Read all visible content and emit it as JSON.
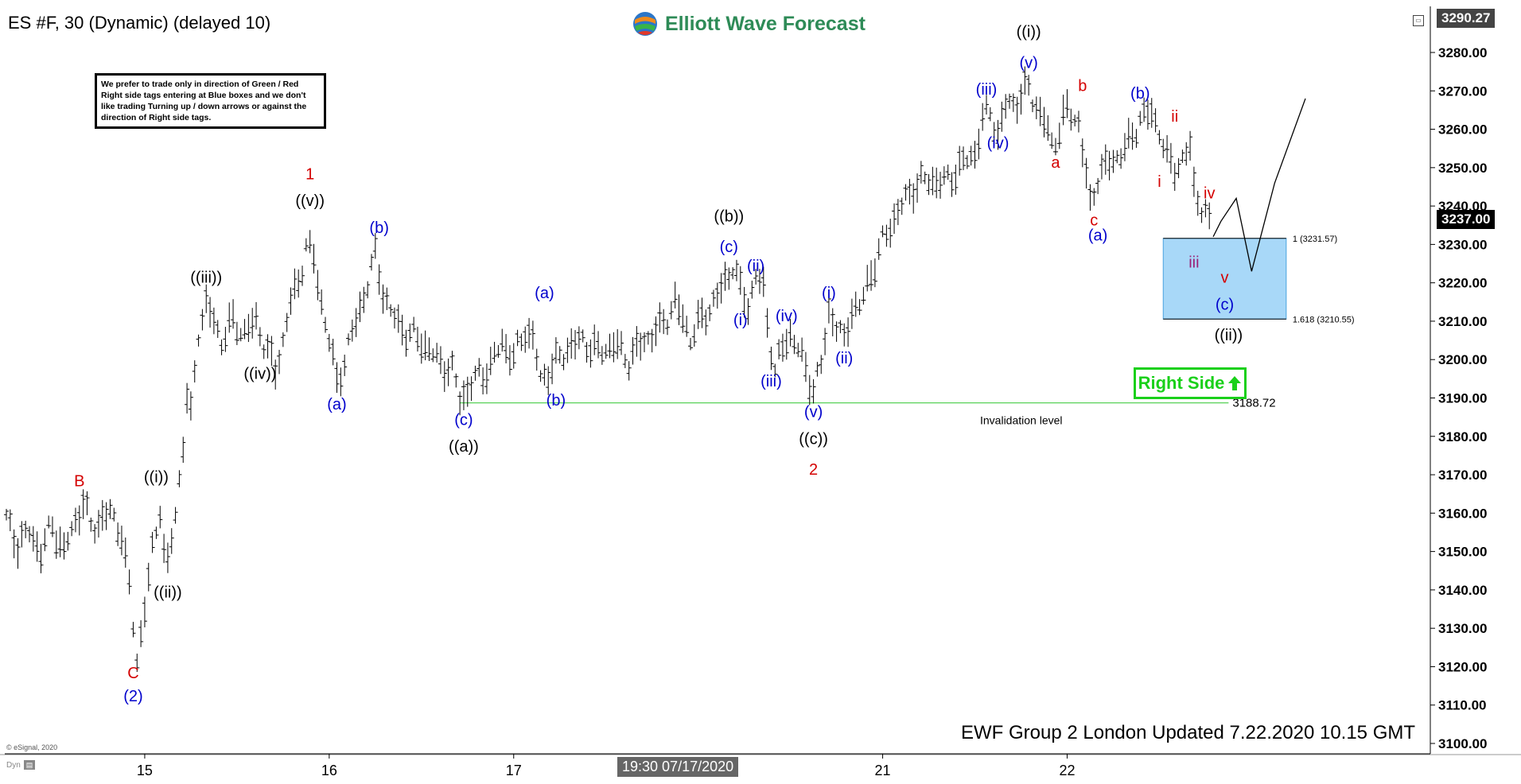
{
  "header": {
    "title": "ES #F, 30 (Dynamic) (delayed 10)",
    "logo_text": "Elliott Wave Forecast",
    "top_price": "3290.27",
    "last_price": "3237.00"
  },
  "disclaimer": "We prefer to trade only in direction of Green / Red Right side tags entering at Blue boxes and we don't like trading Turning up / down arrows or against the direction of Right side tags.",
  "right_side_badge": "Right Side",
  "footer": {
    "updated": "EWF Group 2 London Updated 7.22.2020 10.15 GMT",
    "copyright": "© eSignal, 2020",
    "crosshair_time": "19:30 07/17/2020",
    "dyn": "Dyn"
  },
  "colors": {
    "wave_red": "#d40000",
    "wave_blue": "#0000cc",
    "wave_black": "#000000",
    "wave_purple": "#9b1f77",
    "box_fill": "#a8d8f8",
    "box_border": "#4aa3df",
    "invalidation_line": "#44cc44",
    "right_side": "#1ad01a"
  },
  "chart_data": {
    "type": "line",
    "title": "ES #F, 30 (Dynamic) (delayed 10)",
    "xlabel": "",
    "ylabel": "",
    "ylim": [
      3096,
      3292
    ],
    "y_ticks": [
      3100,
      3110,
      3120,
      3130,
      3140,
      3150,
      3160,
      3170,
      3180,
      3190,
      3200,
      3210,
      3220,
      3230,
      3240,
      3250,
      3260,
      3270,
      3280
    ],
    "x_ticks": [
      {
        "t": 1.8,
        "label": "15"
      },
      {
        "t": 4.2,
        "label": "16"
      },
      {
        "t": 6.6,
        "label": "17"
      },
      {
        "t": 11.4,
        "label": "21"
      },
      {
        "t": 13.8,
        "label": "22"
      }
    ],
    "x_range": [
      0,
      18
    ],
    "price_series": [
      [
        0.0,
        3158
      ],
      [
        0.15,
        3152
      ],
      [
        0.3,
        3155
      ],
      [
        0.45,
        3150
      ],
      [
        0.6,
        3157
      ],
      [
        0.75,
        3150
      ],
      [
        0.9,
        3158
      ],
      [
        1.0,
        3163
      ],
      [
        1.1,
        3156
      ],
      [
        1.2,
        3158
      ],
      [
        1.35,
        3160
      ],
      [
        1.5,
        3155
      ],
      [
        1.6,
        3140
      ],
      [
        1.7,
        3122
      ],
      [
        1.8,
        3135
      ],
      [
        1.9,
        3150
      ],
      [
        2.0,
        3162
      ],
      [
        2.05,
        3150
      ],
      [
        2.1,
        3146
      ],
      [
        2.2,
        3160
      ],
      [
        2.3,
        3178
      ],
      [
        2.35,
        3190
      ],
      [
        2.4,
        3185
      ],
      [
        2.5,
        3208
      ],
      [
        2.6,
        3214
      ],
      [
        2.7,
        3210
      ],
      [
        2.8,
        3205
      ],
      [
        2.95,
        3210
      ],
      [
        3.1,
        3207
      ],
      [
        3.25,
        3210
      ],
      [
        3.4,
        3202
      ],
      [
        3.5,
        3197
      ],
      [
        3.6,
        3205
      ],
      [
        3.7,
        3215
      ],
      [
        3.8,
        3220
      ],
      [
        3.9,
        3230
      ],
      [
        4.0,
        3226
      ],
      [
        4.1,
        3215
      ],
      [
        4.2,
        3205
      ],
      [
        4.3,
        3194
      ],
      [
        4.4,
        3200
      ],
      [
        4.55,
        3210
      ],
      [
        4.7,
        3220
      ],
      [
        4.8,
        3227
      ],
      [
        4.9,
        3218
      ],
      [
        5.0,
        3212
      ],
      [
        5.2,
        3207
      ],
      [
        5.4,
        3205
      ],
      [
        5.6,
        3200
      ],
      [
        5.8,
        3197
      ],
      [
        5.9,
        3190
      ],
      [
        6.0,
        3192
      ],
      [
        6.15,
        3196
      ],
      [
        6.3,
        3198
      ],
      [
        6.45,
        3205
      ],
      [
        6.6,
        3200
      ],
      [
        6.75,
        3208
      ],
      [
        6.85,
        3205
      ],
      [
        6.95,
        3195
      ],
      [
        7.1,
        3198
      ],
      [
        7.3,
        3203
      ],
      [
        7.5,
        3205
      ],
      [
        7.7,
        3202
      ],
      [
        7.9,
        3204
      ],
      [
        8.1,
        3200
      ],
      [
        8.3,
        3205
      ],
      [
        8.5,
        3208
      ],
      [
        8.7,
        3215
      ],
      [
        8.9,
        3206
      ],
      [
        9.1,
        3212
      ],
      [
        9.3,
        3218
      ],
      [
        9.45,
        3225
      ],
      [
        9.55,
        3218
      ],
      [
        9.65,
        3214
      ],
      [
        9.75,
        3222
      ],
      [
        9.85,
        3218
      ],
      [
        9.9,
        3210
      ],
      [
        10.0,
        3197
      ],
      [
        10.1,
        3203
      ],
      [
        10.2,
        3207
      ],
      [
        10.3,
        3203
      ],
      [
        10.4,
        3197
      ],
      [
        10.5,
        3193
      ],
      [
        10.6,
        3198
      ],
      [
        10.65,
        3205
      ],
      [
        10.7,
        3213
      ],
      [
        10.8,
        3209
      ],
      [
        10.9,
        3204
      ],
      [
        11.0,
        3214
      ],
      [
        11.1,
        3213
      ],
      [
        11.2,
        3220
      ],
      [
        11.35,
        3228
      ],
      [
        11.5,
        3235
      ],
      [
        11.65,
        3240
      ],
      [
        11.8,
        3245
      ],
      [
        12.0,
        3247
      ],
      [
        12.2,
        3246
      ],
      [
        12.4,
        3250
      ],
      [
        12.6,
        3254
      ],
      [
        12.7,
        3262
      ],
      [
        12.8,
        3265
      ],
      [
        12.9,
        3258
      ],
      [
        13.0,
        3266
      ],
      [
        13.2,
        3268
      ],
      [
        13.3,
        3271
      ],
      [
        13.4,
        3266
      ],
      [
        13.5,
        3262
      ],
      [
        13.6,
        3256
      ],
      [
        13.7,
        3260
      ],
      [
        13.8,
        3265
      ],
      [
        13.95,
        3262
      ],
      [
        14.1,
        3240
      ],
      [
        14.2,
        3248
      ],
      [
        14.4,
        3252
      ],
      [
        14.6,
        3256
      ],
      [
        14.75,
        3263
      ],
      [
        14.9,
        3264
      ],
      [
        15.0,
        3260
      ],
      [
        15.1,
        3252
      ],
      [
        15.2,
        3250
      ],
      [
        15.3,
        3252
      ],
      [
        15.4,
        3255
      ],
      [
        15.45,
        3245
      ],
      [
        15.55,
        3240
      ],
      [
        15.65,
        3235
      ],
      [
        15.7,
        3232
      ]
    ],
    "projection": [
      [
        15.7,
        3232
      ],
      [
        15.8,
        3236
      ],
      [
        16.0,
        3242
      ],
      [
        16.2,
        3223
      ],
      [
        16.5,
        3246
      ],
      [
        16.9,
        3268
      ]
    ],
    "invalidation": {
      "value": 3188.72,
      "label": "3188.72",
      "text": "Invalidation level",
      "x_start": 5.9,
      "x_end": 15.9
    },
    "target_box": {
      "y_top": 3231.57,
      "y_bottom": 3210.55,
      "x_start": 15.05,
      "x_end": 16.65,
      "label_top": "1 (3231.57)",
      "label_bottom": "1.618 (3210.55)"
    },
    "annotations": [
      {
        "text": "B",
        "x": 0.95,
        "y": 3167,
        "color": "red"
      },
      {
        "text": "C",
        "x": 1.65,
        "y": 3117,
        "color": "red"
      },
      {
        "text": "(2)",
        "x": 1.65,
        "y": 3111,
        "color": "blue"
      },
      {
        "text": "((i))",
        "x": 1.95,
        "y": 3168,
        "color": "black"
      },
      {
        "text": "((ii))",
        "x": 2.1,
        "y": 3138,
        "color": "black"
      },
      {
        "text": "((iii))",
        "x": 2.6,
        "y": 3220,
        "color": "black"
      },
      {
        "text": "((iv))",
        "x": 3.3,
        "y": 3195,
        "color": "black"
      },
      {
        "text": "1",
        "x": 3.95,
        "y": 3247,
        "color": "red"
      },
      {
        "text": "((v))",
        "x": 3.95,
        "y": 3240,
        "color": "black"
      },
      {
        "text": "(a)",
        "x": 4.3,
        "y": 3187,
        "color": "blue"
      },
      {
        "text": "(b)",
        "x": 4.85,
        "y": 3233,
        "color": "blue"
      },
      {
        "text": "(c)",
        "x": 5.95,
        "y": 3183,
        "color": "blue"
      },
      {
        "text": "((a))",
        "x": 5.95,
        "y": 3176,
        "color": "black"
      },
      {
        "text": "(a)",
        "x": 7.0,
        "y": 3216,
        "color": "blue"
      },
      {
        "text": "(b)",
        "x": 7.15,
        "y": 3188,
        "color": "blue"
      },
      {
        "text": "((b))",
        "x": 9.4,
        "y": 3236,
        "color": "black"
      },
      {
        "text": "(c)",
        "x": 9.4,
        "y": 3228,
        "color": "blue"
      },
      {
        "text": "(ii)",
        "x": 9.75,
        "y": 3223,
        "color": "blue"
      },
      {
        "text": "(i)",
        "x": 9.55,
        "y": 3209,
        "color": "blue"
      },
      {
        "text": "(iv)",
        "x": 10.15,
        "y": 3210,
        "color": "blue"
      },
      {
        "text": "(iii)",
        "x": 9.95,
        "y": 3193,
        "color": "blue"
      },
      {
        "text": "(v)",
        "x": 10.5,
        "y": 3185,
        "color": "blue"
      },
      {
        "text": "((c))",
        "x": 10.5,
        "y": 3178,
        "color": "black"
      },
      {
        "text": "2",
        "x": 10.5,
        "y": 3170,
        "color": "red"
      },
      {
        "text": "(i)",
        "x": 10.7,
        "y": 3216,
        "color": "blue"
      },
      {
        "text": "(ii)",
        "x": 10.9,
        "y": 3199,
        "color": "blue"
      },
      {
        "text": "(iii)",
        "x": 12.75,
        "y": 3269,
        "color": "blue"
      },
      {
        "text": "(iv)",
        "x": 12.9,
        "y": 3255,
        "color": "blue"
      },
      {
        "text": "((i))",
        "x": 13.3,
        "y": 3284,
        "color": "black"
      },
      {
        "text": "(v)",
        "x": 13.3,
        "y": 3276,
        "color": "blue"
      },
      {
        "text": "a",
        "x": 13.65,
        "y": 3250,
        "color": "red"
      },
      {
        "text": "b",
        "x": 14.0,
        "y": 3270,
        "color": "red"
      },
      {
        "text": "c",
        "x": 14.15,
        "y": 3235,
        "color": "red"
      },
      {
        "text": "(a)",
        "x": 14.2,
        "y": 3231,
        "color": "blue"
      },
      {
        "text": "(b)",
        "x": 14.75,
        "y": 3268,
        "color": "blue"
      },
      {
        "text": "i",
        "x": 15.0,
        "y": 3245,
        "color": "red"
      },
      {
        "text": "ii",
        "x": 15.2,
        "y": 3262,
        "color": "red"
      },
      {
        "text": "iii",
        "x": 15.45,
        "y": 3224,
        "color": "purple"
      },
      {
        "text": "iv",
        "x": 15.65,
        "y": 3242,
        "color": "red"
      },
      {
        "text": "v",
        "x": 15.85,
        "y": 3220,
        "color": "red"
      },
      {
        "text": "(c)",
        "x": 15.85,
        "y": 3213,
        "color": "blue"
      },
      {
        "text": "((ii))",
        "x": 15.9,
        "y": 3205,
        "color": "black"
      }
    ]
  }
}
